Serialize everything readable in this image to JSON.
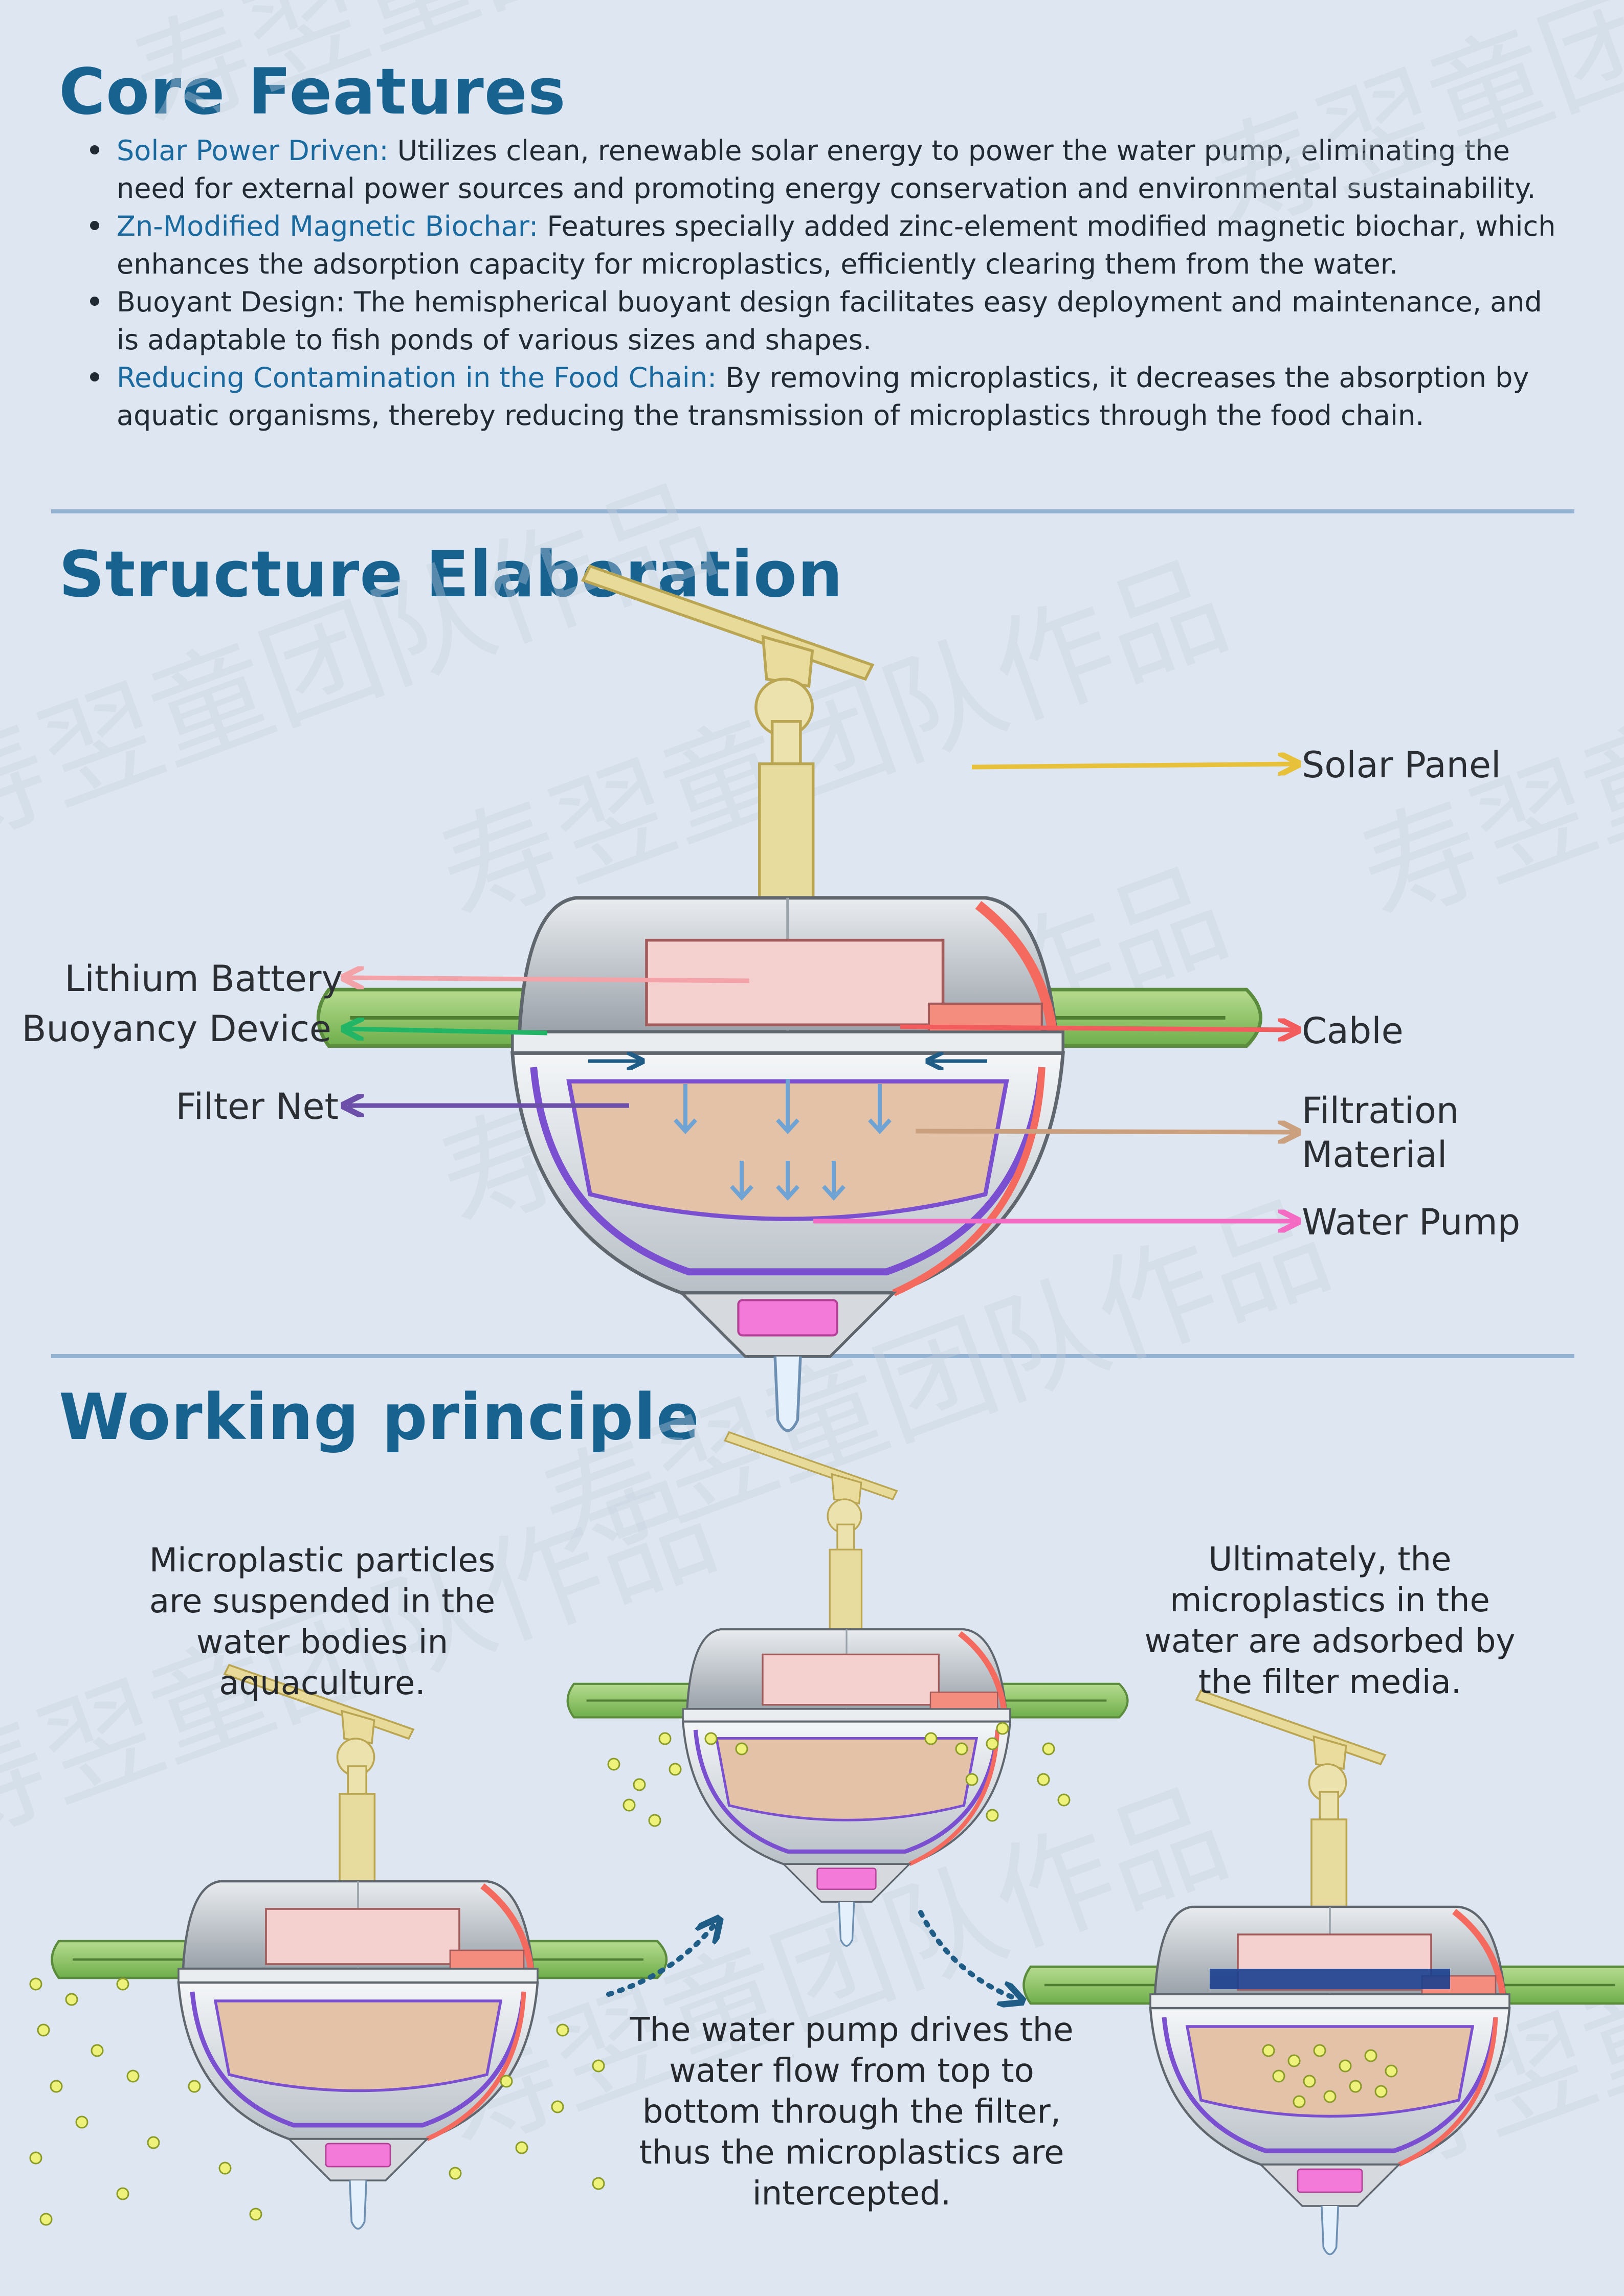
{
  "core": {
    "title": "Core Features",
    "items": [
      {
        "lead": "Solar Power Driven:",
        "lead_color": "#1a6aa0",
        "text": " Utilizes clean, renewable solar energy to power the water pump, eliminating the need for external power sources and promoting energy conservation and environmental sustainability."
      },
      {
        "lead": "Zn-Modified Magnetic Biochar:",
        "lead_color": "#1a6aa0",
        "text": " Features specially added zinc-element modified magnetic biochar, which enhances the adsorption capacity for microplastics, efficiently clearing them from the water."
      },
      {
        "lead": "",
        "lead_color": "#1a6aa0",
        "text": "Buoyant Design: The hemispherical buoyant design facilitates easy deployment and maintenance, and is adaptable to fish ponds of various sizes and shapes."
      },
      {
        "lead": "Reducing Contamination in the Food Chain:",
        "lead_color": "#1a6aa0",
        "text": " By removing microplastics, it decreases the absorption by aquatic organisms, thereby reducing the transmission of microplastics through the food chain."
      }
    ]
  },
  "structure": {
    "title": "Structure Elaboration",
    "labels": {
      "solar_panel": "Solar Panel",
      "lithium_battery": "Lithium Battery",
      "buoyancy_device": "Buoyancy Device",
      "cable": "Cable",
      "filter_net": "Filter Net",
      "filtration_material_1": "Filtration",
      "filtration_material_2": "Material",
      "water_pump": "Water Pump"
    },
    "colors": {
      "solar": "#e7c13a",
      "battery": "#f3a3a8",
      "buoyancy": "#22b565",
      "cable": "#f25c5c",
      "filter_net": "#6b4fa8",
      "filtration": "#caa07f",
      "pump": "#f36bc3"
    }
  },
  "working": {
    "title": "Working principle",
    "step1": "Microplastic particles are suspended in the water bodies in aquaculture.",
    "step2": "The water pump drives the water flow from top to bottom through the filter, thus the microplastics are intercepted.",
    "step3": "Ultimately, the microplastics in the water are adsorbed by the filter media."
  },
  "watermark": "寿翌童团队作品",
  "theme": {
    "heading": "#18628f",
    "rule": "#94b2d1",
    "background": "#dde6f1"
  }
}
